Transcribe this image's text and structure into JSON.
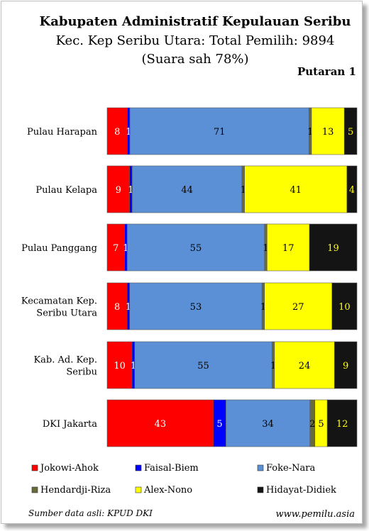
{
  "chart_data": {
    "type": "bar",
    "orientation": "horizontal",
    "stacked": true,
    "title": "Kabupaten Administratif Kepulauan Seribu",
    "subtitle": "Kec. Kep Seribu Utara: Total Pemilih: 9894",
    "subtitle2": "(Suara sah 78%)",
    "round_label": "Putaran 1",
    "categories": [
      "Pulau Harapan",
      "Pulau Kelapa",
      "Pulau Panggang",
      "Kecamatan Kep. Seribu Utara",
      "Kab. Ad. Kep. Seribu",
      "DKI Jakarta"
    ],
    "category_lines": [
      [
        "Pulau Harapan"
      ],
      [
        "Pulau Kelapa"
      ],
      [
        "Pulau Panggang"
      ],
      [
        "Kecamatan Kep.",
        "Seribu Utara"
      ],
      [
        "Kab. Ad. Kep.",
        "Seribu"
      ],
      [
        "DKI Jakarta"
      ]
    ],
    "series": [
      {
        "name": "Jokowi-Ahok",
        "color": "#ff0000",
        "label_color": "#ffffff",
        "values": [
          8,
          9,
          7,
          8,
          10,
          43
        ]
      },
      {
        "name": "Faisal-Biem",
        "color": "#0000ff",
        "label_color": "#ffffff",
        "values": [
          1,
          1,
          1,
          1,
          1,
          5
        ]
      },
      {
        "name": "Foke-Nara",
        "color": "#5b8fd6",
        "label_color": "#000000",
        "values": [
          71,
          44,
          55,
          53,
          55,
          34
        ]
      },
      {
        "name": "Hendardji-Riza",
        "color": "#6b6b3a",
        "label_color": "#000000",
        "values": [
          1,
          1,
          1,
          1,
          1,
          2
        ]
      },
      {
        "name": "Alex-Nono",
        "color": "#ffff00",
        "label_color": "#000000",
        "values": [
          13,
          41,
          17,
          27,
          24,
          5
        ]
      },
      {
        "name": "Hidayat-Didiek",
        "color": "#141414",
        "label_color": "#ffff00",
        "values": [
          5,
          4,
          19,
          10,
          9,
          12
        ]
      }
    ],
    "legend_position": "bottom",
    "grid": false
  },
  "footer": {
    "source": "Sumber data asli: KPUD DKI",
    "website": "www.pemilu.asia"
  }
}
